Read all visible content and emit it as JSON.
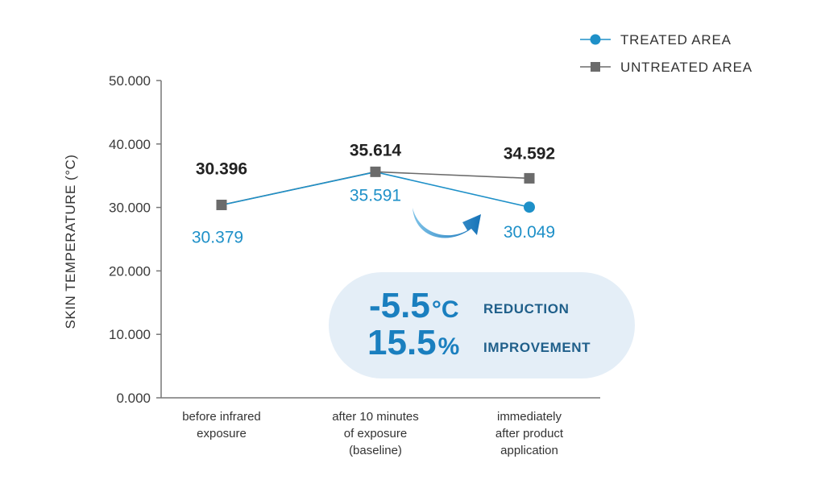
{
  "chart_data": {
    "type": "line",
    "ylabel": "SKIN TEMPERATURE (°C)",
    "ylim": [
      0,
      50
    ],
    "yticks": [
      "0.000",
      "10.000",
      "20.000",
      "30.000",
      "40.000",
      "50.000"
    ],
    "categories": [
      [
        "before infrared",
        "exposure"
      ],
      [
        "after 10 minutes",
        "of exposure",
        "(baseline)"
      ],
      [
        "immediately",
        "after product",
        "application"
      ]
    ],
    "legend_position": "top-right",
    "series": [
      {
        "name": "TREATED AREA",
        "color": "#1e90c8",
        "marker": "circle",
        "values": [
          30.379,
          35.591,
          30.049
        ],
        "labels": [
          "30.379",
          "35.591",
          "30.049"
        ],
        "visible_points": [
          false,
          false,
          true
        ]
      },
      {
        "name": "UNTREATED AREA",
        "color": "#6b6b6b",
        "marker": "square",
        "values": [
          30.396,
          35.614,
          34.592
        ],
        "labels": [
          "30.396",
          "35.614",
          "34.592"
        ],
        "visible_points": [
          true,
          true,
          true
        ]
      }
    ],
    "callout": {
      "line1_value": "-5.5",
      "line1_unit": "°C",
      "line1_text": "REDUCTION",
      "line2_value": "15.5",
      "line2_unit": "%",
      "line2_text": "IMPROVEMENT",
      "background": "#e4eef7"
    }
  }
}
